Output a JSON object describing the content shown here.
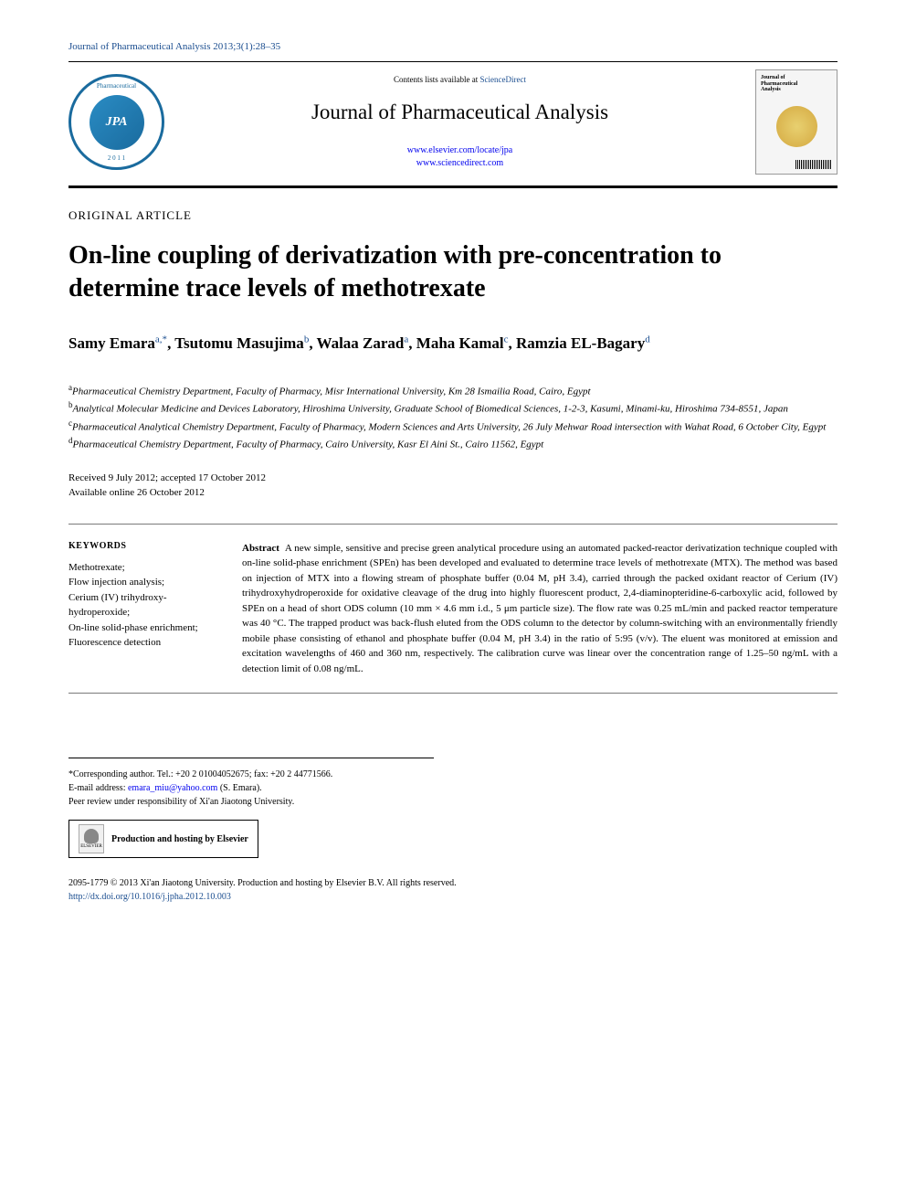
{
  "header": {
    "journal_ref": "Journal of Pharmaceutical Analysis 2013;3(1):28–35",
    "logo": {
      "initials": "JPA",
      "ring_text_top": "Pharmaceutical",
      "ring_text_bottom": "2 0 1 1",
      "border_color": "#1a6b9e"
    },
    "contents_prefix": "Contents lists available at ",
    "contents_link": "ScienceDirect",
    "journal_name": "Journal of Pharmaceutical Analysis",
    "link1": "www.elsevier.com/locate/jpa",
    "link2": "www.sciencedirect.com",
    "cover": {
      "title_line1": "Journal of",
      "title_line2": "Pharmaceutical",
      "title_line3": "Analysis"
    }
  },
  "article": {
    "type": "ORIGINAL ARTICLE",
    "title": "On-line coupling of derivatization with pre-concentration to determine trace levels of methotrexate",
    "authors": [
      {
        "name": "Samy Emara",
        "affil": "a,*"
      },
      {
        "name": "Tsutomu Masujima",
        "affil": "b"
      },
      {
        "name": "Walaa Zarad",
        "affil": "a"
      },
      {
        "name": "Maha Kamal",
        "affil": "c"
      },
      {
        "name": "Ramzia EL-Bagary",
        "affil": "d"
      }
    ],
    "affiliations": {
      "a": "Pharmaceutical Chemistry Department, Faculty of Pharmacy, Misr International University, Km 28 Ismailia Road, Cairo, Egypt",
      "b": "Analytical Molecular Medicine and Devices Laboratory, Hiroshima University, Graduate School of Biomedical Sciences, 1-2-3, Kasumi, Minami-ku, Hiroshima 734-8551, Japan",
      "c": "Pharmaceutical Analytical Chemistry Department, Faculty of Pharmacy, Modern Sciences and Arts University, 26 July Mehwar Road intersection with Wahat Road, 6 October City, Egypt",
      "d": "Pharmaceutical Chemistry Department, Faculty of Pharmacy, Cairo University, Kasr El Aini St., Cairo 11562, Egypt"
    },
    "received": "Received 9 July 2012; accepted 17 October 2012",
    "available": "Available online 26 October 2012"
  },
  "keywords": {
    "heading": "KEYWORDS",
    "items": "Methotrexate;\nFlow injection analysis;\nCerium (IV) trihydroxy-hydroperoxide;\nOn-line solid-phase enrichment;\nFluorescence detection"
  },
  "abstract": {
    "label": "Abstract",
    "text": "A new simple, sensitive and precise green analytical procedure using an automated packed-reactor derivatization technique coupled with on-line solid-phase enrichment (SPEn) has been developed and evaluated to determine trace levels of methotrexate (MTX). The method was based on injection of MTX into a flowing stream of phosphate buffer (0.04 M, pH 3.4), carried through the packed oxidant reactor of Cerium (IV) trihydroxyhydroperoxide for oxidative cleavage of the drug into highly fluorescent product, 2,4-diaminopteridine-6-carboxylic acid, followed by SPEn on a head of short ODS column (10 mm × 4.6 mm i.d., 5 μm particle size). The flow rate was 0.25 mL/min and packed reactor temperature was 40 °C. The trapped product was back-flush eluted from the ODS column to the detector by column-switching with an environmentally friendly mobile phase consisting of ethanol and phosphate buffer (0.04 M, pH 3.4) in the ratio of 5:95 (v/v). The eluent was monitored at emission and excitation wavelengths of 460 and 360 nm, respectively. The calibration curve was linear over the concentration range of 1.25–50 ng/mL with a detection limit of 0.08 ng/mL."
  },
  "footer": {
    "corresponding": "*Corresponding author. Tel.: +20 2 01004052675; fax: +20 2 44771566.",
    "email_label": "E-mail address: ",
    "email": "emara_miu@yahoo.com",
    "email_name": " (S. Emara).",
    "peer_review": "Peer review under responsibility of Xi'an Jiaotong University.",
    "elsevier_label": "ELSEVIER",
    "hosting": "Production and hosting by Elsevier"
  },
  "copyright": {
    "line1": "2095-1779 © 2013 Xi'an Jiaotong University. Production and hosting by Elsevier B.V. All rights reserved.",
    "doi": "http://dx.doi.org/10.1016/j.jpha.2012.10.003"
  },
  "colors": {
    "link": "#1a4d8f",
    "logo_border": "#1a6b9e",
    "text": "#000000",
    "background": "#ffffff"
  },
  "typography": {
    "title_fontsize": 28,
    "journal_name_fontsize": 23,
    "authors_fontsize": 17,
    "body_fontsize": 11,
    "small_fontsize": 10
  }
}
